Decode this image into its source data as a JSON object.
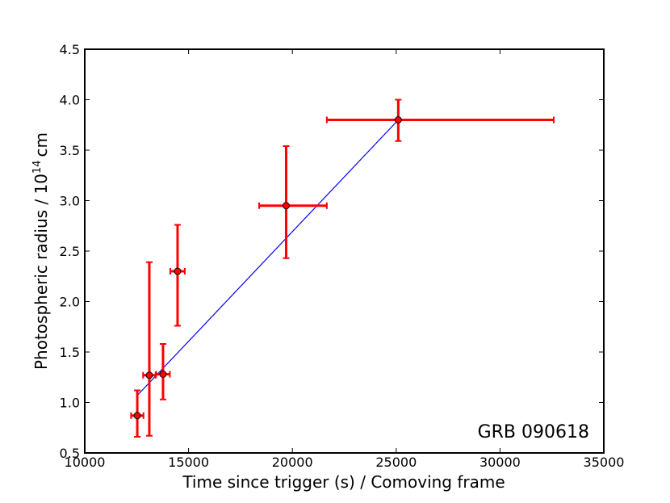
{
  "chart_data": {
    "type": "scatter",
    "x_label": "Time since trigger (s) / Comoving frame",
    "y_label": {
      "text": "Photospheric radius / 10",
      "superscript": "14",
      "unit": "cm"
    },
    "annotation": "GRB 090618",
    "xlim": [
      10000,
      35000
    ],
    "xticks": [
      10000,
      15000,
      20000,
      25000,
      30000,
      35000
    ],
    "ylim": [
      0.5,
      4.5
    ],
    "yticks": [
      0.5,
      {
        "value": 1,
        "label": "1.0"
      },
      1.5,
      {
        "value": 2,
        "label": "2.0"
      },
      2.5,
      {
        "value": 3,
        "label": "3.0"
      },
      3.5,
      {
        "value": 4,
        "label": "4.0"
      },
      4.5
    ],
    "series": [
      {
        "color": "#ff0000",
        "x": [
          12530,
          13110,
          13770,
          14470,
          19700,
          25100
        ],
        "values": [
          0.87,
          1.27,
          1.28,
          2.3,
          2.95,
          3.8
        ],
        "xerr_minus": [
          300,
          300,
          330,
          350,
          1300,
          3440
        ],
        "xerr_plus": [
          300,
          300,
          330,
          350,
          1960,
          7490
        ],
        "yerr_minus": [
          0.21,
          0.6,
          0.25,
          0.54,
          0.52,
          0.21
        ],
        "yerr_plus": [
          0.25,
          1.12,
          0.3,
          0.46,
          0.59,
          0.2
        ]
      }
    ],
    "fit_line": {
      "color": "#0000ff",
      "x": [
        12530,
        25100
      ],
      "y": [
        1.07,
        3.8
      ]
    }
  }
}
